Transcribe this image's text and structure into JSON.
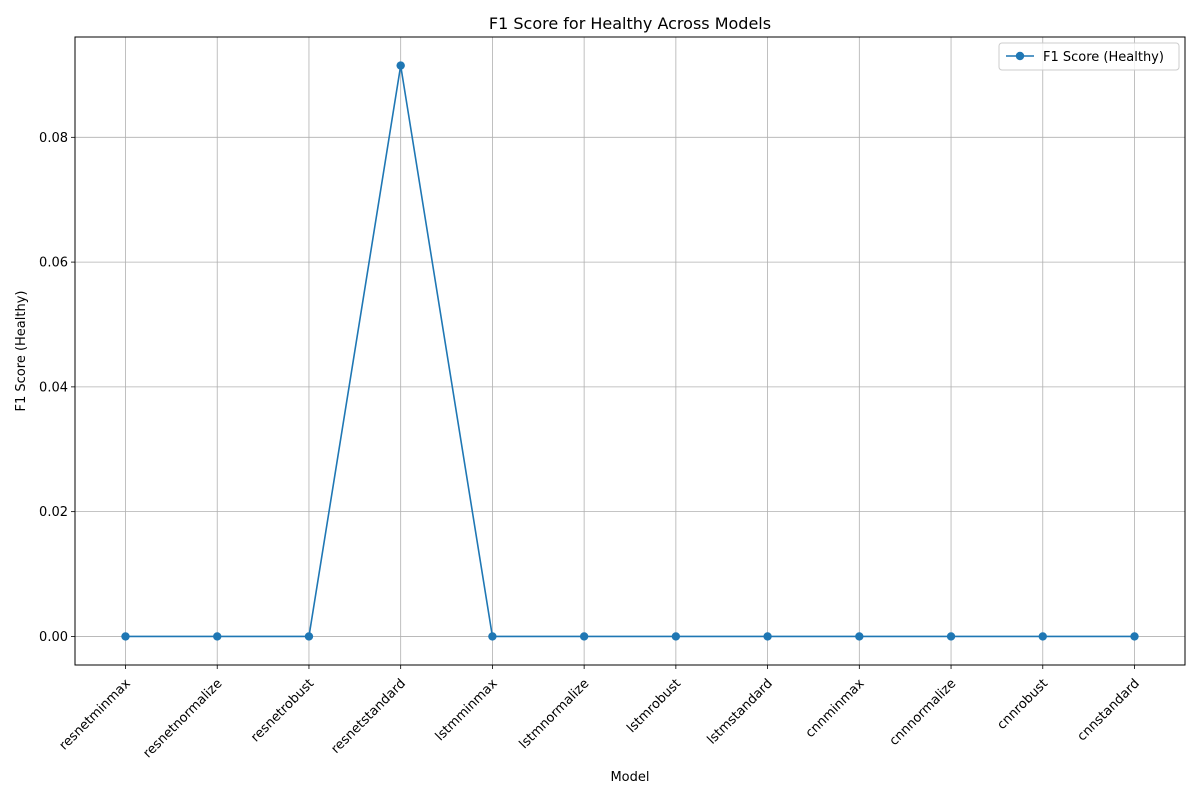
{
  "chart_data": {
    "type": "line",
    "title": "F1 Score for Healthy Across Models",
    "xlabel": "Model",
    "ylabel": "F1 Score (Healthy)",
    "categories": [
      "resnetminmax",
      "resnetnormalize",
      "resnetrobust",
      "resnetstandard",
      "lstmminmax",
      "lstmnormalize",
      "lstmrobust",
      "lstmstandard",
      "cnnminmax",
      "cnnnormalize",
      "cnnrobust",
      "cnnstandard"
    ],
    "series": [
      {
        "name": "F1 Score (Healthy)",
        "values": [
          0,
          0,
          0,
          0.0915,
          0,
          0,
          0,
          0,
          0,
          0,
          0,
          0
        ],
        "color": "#1f77b4"
      }
    ],
    "yticks": [
      0.0,
      0.02,
      0.04,
      0.06,
      0.08
    ],
    "ytick_labels": [
      "0.00",
      "0.02",
      "0.04",
      "0.06",
      "0.08"
    ],
    "ylim": [
      -0.00458,
      0.09608
    ],
    "grid": true,
    "legend_position": "top-right",
    "marker": "circle"
  }
}
